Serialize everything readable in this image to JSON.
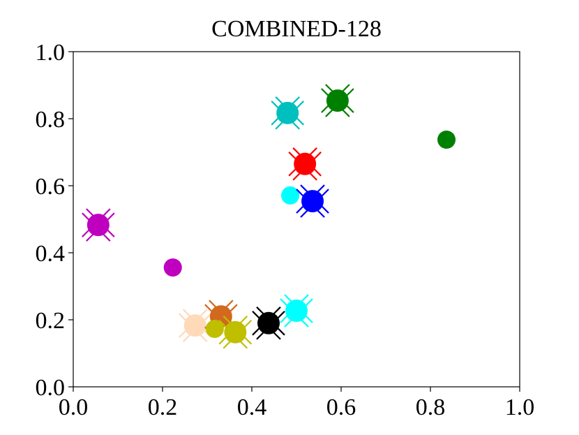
{
  "chart_data": {
    "type": "scatter",
    "title": "COMBINED-128",
    "xlim": [
      0,
      1
    ],
    "ylim": [
      0,
      1
    ],
    "xticks": [
      {
        "value": 0,
        "label": "0.0"
      },
      0.2,
      0.4,
      0.6,
      0.8,
      {
        "value": 1,
        "label": "1.0"
      }
    ],
    "yticks": [
      {
        "value": 0,
        "label": "0.0"
      },
      0.2,
      0.4,
      0.6,
      0.8,
      {
        "value": 1,
        "label": "1.0"
      }
    ],
    "series": [
      {
        "color": "#bf00bf",
        "marker": "cross-circle",
        "x": [
          0.056
        ],
        "values": [
          0.483
        ]
      },
      {
        "color": "#bf00bf",
        "marker": "circle",
        "x": [
          0.223
        ],
        "values": [
          0.356
        ]
      },
      {
        "color": "#ffdab9",
        "marker": "cross-circle",
        "x": [
          0.273
        ],
        "values": [
          0.183
        ]
      },
      {
        "color": "#d2691e",
        "marker": "cross-circle",
        "x": [
          0.331
        ],
        "values": [
          0.21
        ]
      },
      {
        "color": "#bfbf00",
        "marker": "circle",
        "x": [
          0.317
        ],
        "values": [
          0.173
        ]
      },
      {
        "color": "#bfbf00",
        "marker": "cross-circle",
        "x": [
          0.363
        ],
        "values": [
          0.163
        ]
      },
      {
        "color": "#000000",
        "marker": "cross-circle",
        "x": [
          0.4375
        ],
        "values": [
          0.19
        ]
      },
      {
        "color": "#00ffff",
        "marker": "cross-circle",
        "x": [
          0.5
        ],
        "values": [
          0.227
        ]
      },
      {
        "color": "#00ffff",
        "marker": "circle",
        "x": [
          0.486
        ],
        "values": [
          0.571
        ]
      },
      {
        "color": "#0000ff",
        "marker": "cross-circle",
        "x": [
          0.536
        ],
        "values": [
          0.554
        ]
      },
      {
        "color": "#ff0000",
        "marker": "cross-circle",
        "x": [
          0.519
        ],
        "values": [
          0.665
        ]
      },
      {
        "color": "#00bfbf",
        "marker": "cross-circle",
        "x": [
          0.48
        ],
        "values": [
          0.817
        ]
      },
      {
        "color": "#008000",
        "marker": "cross-circle",
        "x": [
          0.592
        ],
        "values": [
          0.854
        ]
      },
      {
        "color": "#008000",
        "marker": "circle",
        "x": [
          0.836
        ],
        "values": [
          0.7375
        ]
      }
    ]
  }
}
